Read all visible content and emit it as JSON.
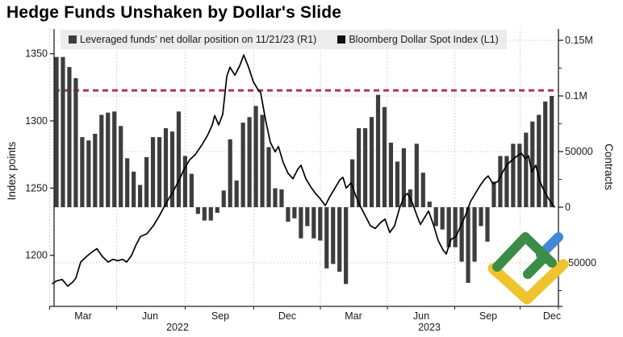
{
  "title": "Hedge Funds Unshaken by Dollar's Slide",
  "legend": {
    "items": [
      {
        "label": "Leveraged funds' net dollar position on 11/21/23 (R1)",
        "swatch": "#3d3d3d"
      },
      {
        "label": "Bloomberg Dollar Spot Index (L1)",
        "swatch": "#111111"
      }
    ]
  },
  "logo": {
    "name": "litefinance-logo",
    "green": "#3a8c46",
    "blue": "#4189d6",
    "yellow": "#eec32d"
  },
  "chart_data": {
    "type": "combo",
    "title": "Hedge Funds Unshaken by Dollar's Slide",
    "left_axis": {
      "title": "Index points",
      "tick_labels": [
        "1350",
        "1300",
        "1250",
        "1200"
      ],
      "tick_values": [
        1350,
        1300,
        1250,
        1200
      ],
      "range": [
        1162,
        1368
      ]
    },
    "right_axis": {
      "title": "Contracts",
      "tick_labels": [
        "0.15M",
        "0.1M",
        "50000",
        "0",
        "-50000"
      ],
      "tick_values": [
        150000,
        100000,
        50000,
        0,
        -50000
      ],
      "minor_tick_values": [
        125000,
        75000,
        25000,
        -25000,
        -75000
      ],
      "range": [
        -89000,
        160000
      ]
    },
    "x_axis": {
      "labels": [
        "Mar",
        "Jun",
        "Sep",
        "Dec",
        "Mar",
        "Jun",
        "Sep",
        "Dec"
      ],
      "years": [
        "2022",
        "2023"
      ],
      "grid": true
    },
    "reference_line": {
      "value": 105000,
      "style": "dashed",
      "color": "#b13252"
    },
    "colors": {
      "bar": "#3d3d3d",
      "line": "#000000",
      "grid": "#c9c9c9",
      "axis": "#222222",
      "legend_bg": "#ececec"
    },
    "series": [
      {
        "name": "Leveraged funds' net dollar position on 11/21/23",
        "type": "bar",
        "axis": "right",
        "unit": "contracts",
        "values": [
          135000,
          135000,
          126000,
          116000,
          63000,
          60000,
          66000,
          83000,
          85000,
          86000,
          73000,
          44000,
          32000,
          20000,
          45000,
          63000,
          63000,
          71000,
          68000,
          86000,
          46000,
          30000,
          -6000,
          -12000,
          -12000,
          -5000,
          15000,
          61000,
          24000,
          76000,
          81000,
          91000,
          83000,
          54000,
          17000,
          16000,
          -13000,
          -10000,
          -28000,
          -17000,
          -28000,
          -30000,
          -55000,
          -51000,
          -58000,
          -69000,
          43000,
          71000,
          71000,
          81000,
          101000,
          90000,
          58000,
          41000,
          53000,
          16000,
          57000,
          31000,
          5000,
          -17000,
          -20000,
          -36000,
          -36000,
          -49000,
          -68000,
          -49000,
          -17000,
          -31000,
          23000,
          46000,
          46000,
          57000,
          57000,
          67000,
          77000,
          83000,
          95000,
          100000
        ]
      },
      {
        "name": "Bloomberg Dollar Spot Index",
        "type": "line",
        "axis": "left",
        "unit": "index points",
        "points": [
          [
            65,
            1179
          ],
          [
            70,
            1181
          ],
          [
            77,
            1182
          ],
          [
            84,
            1177
          ],
          [
            90,
            1180
          ],
          [
            94,
            1183
          ],
          [
            100,
            1195
          ],
          [
            107,
            1199
          ],
          [
            113,
            1202
          ],
          [
            120,
            1205
          ],
          [
            127,
            1199
          ],
          [
            134,
            1195
          ],
          [
            140,
            1197
          ],
          [
            146,
            1196
          ],
          [
            152,
            1197
          ],
          [
            157,
            1195
          ],
          [
            163,
            1200
          ],
          [
            168,
            1207
          ],
          [
            174,
            1214
          ],
          [
            182,
            1216
          ],
          [
            190,
            1222
          ],
          [
            198,
            1230
          ],
          [
            206,
            1239
          ],
          [
            214,
            1247
          ],
          [
            222,
            1256
          ],
          [
            228,
            1264
          ],
          [
            235,
            1271
          ],
          [
            242,
            1275
          ],
          [
            250,
            1282
          ],
          [
            257,
            1289
          ],
          [
            263,
            1297
          ],
          [
            266,
            1304
          ],
          [
            271,
            1297
          ],
          [
            276,
            1305
          ],
          [
            281,
            1333
          ],
          [
            285,
            1340
          ],
          [
            291,
            1334
          ],
          [
            297,
            1341
          ],
          [
            302,
            1349
          ],
          [
            308,
            1340
          ],
          [
            314,
            1329
          ],
          [
            319,
            1324
          ],
          [
            323,
            1321
          ],
          [
            329,
            1301
          ],
          [
            335,
            1284
          ],
          [
            341,
            1277
          ],
          [
            345,
            1281
          ],
          [
            351,
            1269
          ],
          [
            357,
            1261
          ],
          [
            363,
            1257
          ],
          [
            369,
            1264
          ],
          [
            373,
            1267
          ],
          [
            379,
            1257
          ],
          [
            385,
            1251
          ],
          [
            391,
            1246
          ],
          [
            397,
            1242
          ],
          [
            403,
            1237
          ],
          [
            409,
            1244
          ],
          [
            415,
            1250
          ],
          [
            421,
            1256
          ],
          [
            425,
            1258
          ],
          [
            429,
            1250
          ],
          [
            435,
            1254
          ],
          [
            441,
            1244
          ],
          [
            447,
            1236
          ],
          [
            453,
            1229
          ],
          [
            459,
            1222
          ],
          [
            465,
            1220
          ],
          [
            471,
            1224
          ],
          [
            477,
            1227
          ],
          [
            483,
            1217
          ],
          [
            489,
            1222
          ],
          [
            495,
            1235
          ],
          [
            501,
            1244
          ],
          [
            505,
            1246
          ],
          [
            511,
            1239
          ],
          [
            517,
            1229
          ],
          [
            521,
            1223
          ],
          [
            527,
            1229
          ],
          [
            531,
            1233
          ],
          [
            537,
            1223
          ],
          [
            543,
            1211
          ],
          [
            549,
            1204
          ],
          [
            553,
            1201
          ],
          [
            559,
            1212
          ],
          [
            565,
            1214
          ],
          [
            571,
            1222
          ],
          [
            577,
            1230
          ],
          [
            583,
            1240
          ],
          [
            589,
            1246
          ],
          [
            595,
            1252
          ],
          [
            601,
            1257
          ],
          [
            605,
            1259
          ],
          [
            611,
            1253
          ],
          [
            617,
            1255
          ],
          [
            623,
            1262
          ],
          [
            629,
            1268
          ],
          [
            635,
            1271
          ],
          [
            641,
            1274
          ],
          [
            646,
            1276
          ],
          [
            651,
            1272
          ],
          [
            655,
            1274
          ],
          [
            659,
            1262
          ],
          [
            664,
            1267
          ],
          [
            669,
            1255
          ],
          [
            675,
            1247
          ],
          [
            681,
            1241
          ],
          [
            687,
            1236
          ]
        ]
      }
    ]
  }
}
